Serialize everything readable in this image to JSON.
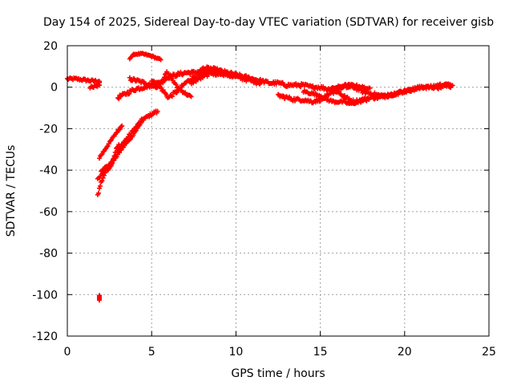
{
  "chart_data": {
    "type": "scatter",
    "title": "Day 154 of 2025, Sidereal Day-to-day VTEC variation (SDTVAR) for receiver gisb",
    "xlabel": "GPS time / hours",
    "ylabel": "SDTVAR / TECUs",
    "xlim": [
      0,
      25
    ],
    "ylim": [
      -120,
      20
    ],
    "x_ticks": [
      0,
      5,
      10,
      15,
      20,
      25
    ],
    "y_ticks": [
      20,
      0,
      -20,
      -40,
      -60,
      -80,
      -100,
      -120
    ],
    "x_tick_labels": [
      "0",
      "5",
      "10",
      "15",
      "20",
      "25"
    ],
    "y_tick_labels": [
      "20",
      "0",
      "-20",
      "-40",
      "-60",
      "-80",
      "-100",
      "-120"
    ],
    "grid": true,
    "legend": "none",
    "marker": "plus",
    "color": "#ff0000",
    "tracks": [
      {
        "points": [
          [
            0.0,
            4
          ],
          [
            0.5,
            4
          ],
          [
            1.0,
            3.5
          ],
          [
            1.5,
            3
          ],
          [
            1.9,
            3
          ],
          [
            1.9,
            1
          ],
          [
            1.5,
            0
          ],
          [
            1.3,
            0
          ]
        ],
        "spread": 1.2
      },
      {
        "points": [
          [
            1.8,
            -52
          ],
          [
            2.0,
            -46
          ],
          [
            2.3,
            -40
          ],
          [
            2.7,
            -35
          ],
          [
            3.0,
            -30
          ],
          [
            3.5,
            -25
          ],
          [
            4.0,
            -20
          ],
          [
            4.4,
            -16
          ],
          [
            4.8,
            -14
          ],
          [
            5.2,
            -12
          ],
          [
            5.4,
            -12
          ]
        ],
        "spread": 1.4
      },
      {
        "points": [
          [
            1.8,
            -44
          ],
          [
            2.2,
            -41
          ],
          [
            2.6,
            -38
          ],
          [
            2.9,
            -30
          ],
          [
            3.1,
            -27
          ]
        ],
        "spread": 1.2
      },
      {
        "points": [
          [
            1.9,
            -34
          ],
          [
            2.4,
            -28
          ],
          [
            2.9,
            -22
          ],
          [
            3.3,
            -18
          ]
        ],
        "spread": 1.0
      },
      {
        "points": [
          [
            2.0,
            -40
          ],
          [
            2.6,
            -37
          ],
          [
            3.2,
            -30
          ],
          [
            3.8,
            -24
          ],
          [
            4.3,
            -18
          ],
          [
            4.6,
            -14
          ]
        ],
        "spread": 1.2
      },
      {
        "points": [
          [
            1.9,
            -103
          ],
          [
            1.9,
            -101
          ],
          [
            1.9,
            -100
          ]
        ],
        "spread": 0.6
      },
      {
        "points": [
          [
            3.7,
            14
          ],
          [
            4.0,
            16
          ],
          [
            4.5,
            16
          ],
          [
            5.0,
            15
          ],
          [
            5.3,
            14
          ],
          [
            5.6,
            13
          ]
        ],
        "spread": 0.8
      },
      {
        "points": [
          [
            3.7,
            4
          ],
          [
            4.2,
            3
          ],
          [
            4.6,
            2
          ],
          [
            5.0,
            1
          ],
          [
            5.5,
            0
          ],
          [
            5.8,
            -3
          ],
          [
            6.0,
            -5
          ],
          [
            6.5,
            -2
          ],
          [
            7.0,
            2
          ],
          [
            7.5,
            5
          ],
          [
            8.0,
            6
          ],
          [
            8.5,
            7
          ],
          [
            9.0,
            6
          ]
        ],
        "spread": 1.6
      },
      {
        "points": [
          [
            3.0,
            -5
          ],
          [
            3.5,
            -3
          ],
          [
            4.0,
            -1
          ],
          [
            4.5,
            0
          ],
          [
            5.0,
            1
          ],
          [
            5.5,
            2
          ],
          [
            6.0,
            5
          ],
          [
            6.5,
            6
          ],
          [
            7.0,
            7
          ],
          [
            7.5,
            7
          ],
          [
            8.0,
            8
          ],
          [
            8.5,
            8
          ],
          [
            9.0,
            7
          ],
          [
            9.5,
            6
          ],
          [
            10.0,
            5
          ],
          [
            10.5,
            4
          ],
          [
            11.0,
            3
          ],
          [
            11.5,
            2
          ]
        ],
        "spread": 1.8
      },
      {
        "points": [
          [
            5.0,
            3
          ],
          [
            5.3,
            2
          ],
          [
            5.6,
            3
          ],
          [
            5.9,
            7
          ],
          [
            6.2,
            4
          ],
          [
            6.5,
            0
          ],
          [
            7.0,
            -3
          ],
          [
            7.4,
            -5
          ]
        ],
        "spread": 1.2
      },
      {
        "points": [
          [
            7.3,
            2
          ],
          [
            7.8,
            4
          ],
          [
            8.3,
            6
          ],
          [
            8.8,
            8
          ],
          [
            9.3,
            7
          ],
          [
            9.8,
            5
          ]
        ],
        "spread": 1.6
      },
      {
        "points": [
          [
            8.0,
            9
          ],
          [
            8.5,
            9
          ],
          [
            9.0,
            8
          ],
          [
            9.5,
            7
          ],
          [
            10.0,
            6
          ],
          [
            10.5,
            5
          ],
          [
            11.0,
            4
          ],
          [
            11.5,
            3
          ],
          [
            12.0,
            2
          ],
          [
            12.5,
            2
          ],
          [
            13.0,
            1
          ],
          [
            13.5,
            1
          ],
          [
            14.0,
            1
          ],
          [
            14.5,
            0
          ],
          [
            15.0,
            0
          ],
          [
            15.5,
            -1
          ],
          [
            16.0,
            -2
          ],
          [
            16.5,
            -5
          ],
          [
            17.0,
            -7
          ],
          [
            17.5,
            -6
          ],
          [
            18.0,
            -5
          ],
          [
            18.5,
            -5
          ],
          [
            19.0,
            -4
          ],
          [
            19.5,
            -3
          ],
          [
            20.0,
            -2
          ],
          [
            20.5,
            -1
          ],
          [
            21.0,
            0
          ],
          [
            21.5,
            0
          ],
          [
            22.0,
            1
          ],
          [
            22.5,
            1
          ],
          [
            22.9,
            0
          ]
        ],
        "spread": 1.6
      },
      {
        "points": [
          [
            12.5,
            -4
          ],
          [
            13.0,
            -5
          ],
          [
            13.5,
            -6
          ],
          [
            14.0,
            -6
          ],
          [
            14.5,
            -7
          ],
          [
            15.0,
            -6
          ],
          [
            15.5,
            -4
          ],
          [
            16.0,
            -1
          ],
          [
            16.5,
            0
          ],
          [
            17.0,
            0
          ],
          [
            17.5,
            -2
          ],
          [
            18.0,
            -3
          ],
          [
            18.5,
            -4
          ],
          [
            19.0,
            -4
          ],
          [
            19.5,
            -3
          ],
          [
            20.0,
            -2
          ],
          [
            20.5,
            -1
          ],
          [
            21.0,
            0
          ],
          [
            21.5,
            0
          ],
          [
            22.0,
            0
          ],
          [
            22.5,
            1
          ],
          [
            22.8,
            1
          ]
        ],
        "spread": 1.6
      },
      {
        "points": [
          [
            14.0,
            -2
          ],
          [
            14.5,
            -3
          ],
          [
            15.0,
            -4
          ],
          [
            15.4,
            -6
          ],
          [
            15.8,
            -7
          ],
          [
            16.3,
            -7
          ],
          [
            16.8,
            -8
          ],
          [
            17.3,
            -7
          ],
          [
            17.8,
            -6
          ]
        ],
        "spread": 1.2
      },
      {
        "points": [
          [
            15.5,
            -1
          ],
          [
            16.0,
            0
          ],
          [
            16.5,
            1
          ],
          [
            17.0,
            1
          ],
          [
            17.5,
            0
          ],
          [
            18.0,
            -1
          ]
        ],
        "spread": 1.0
      }
    ]
  }
}
